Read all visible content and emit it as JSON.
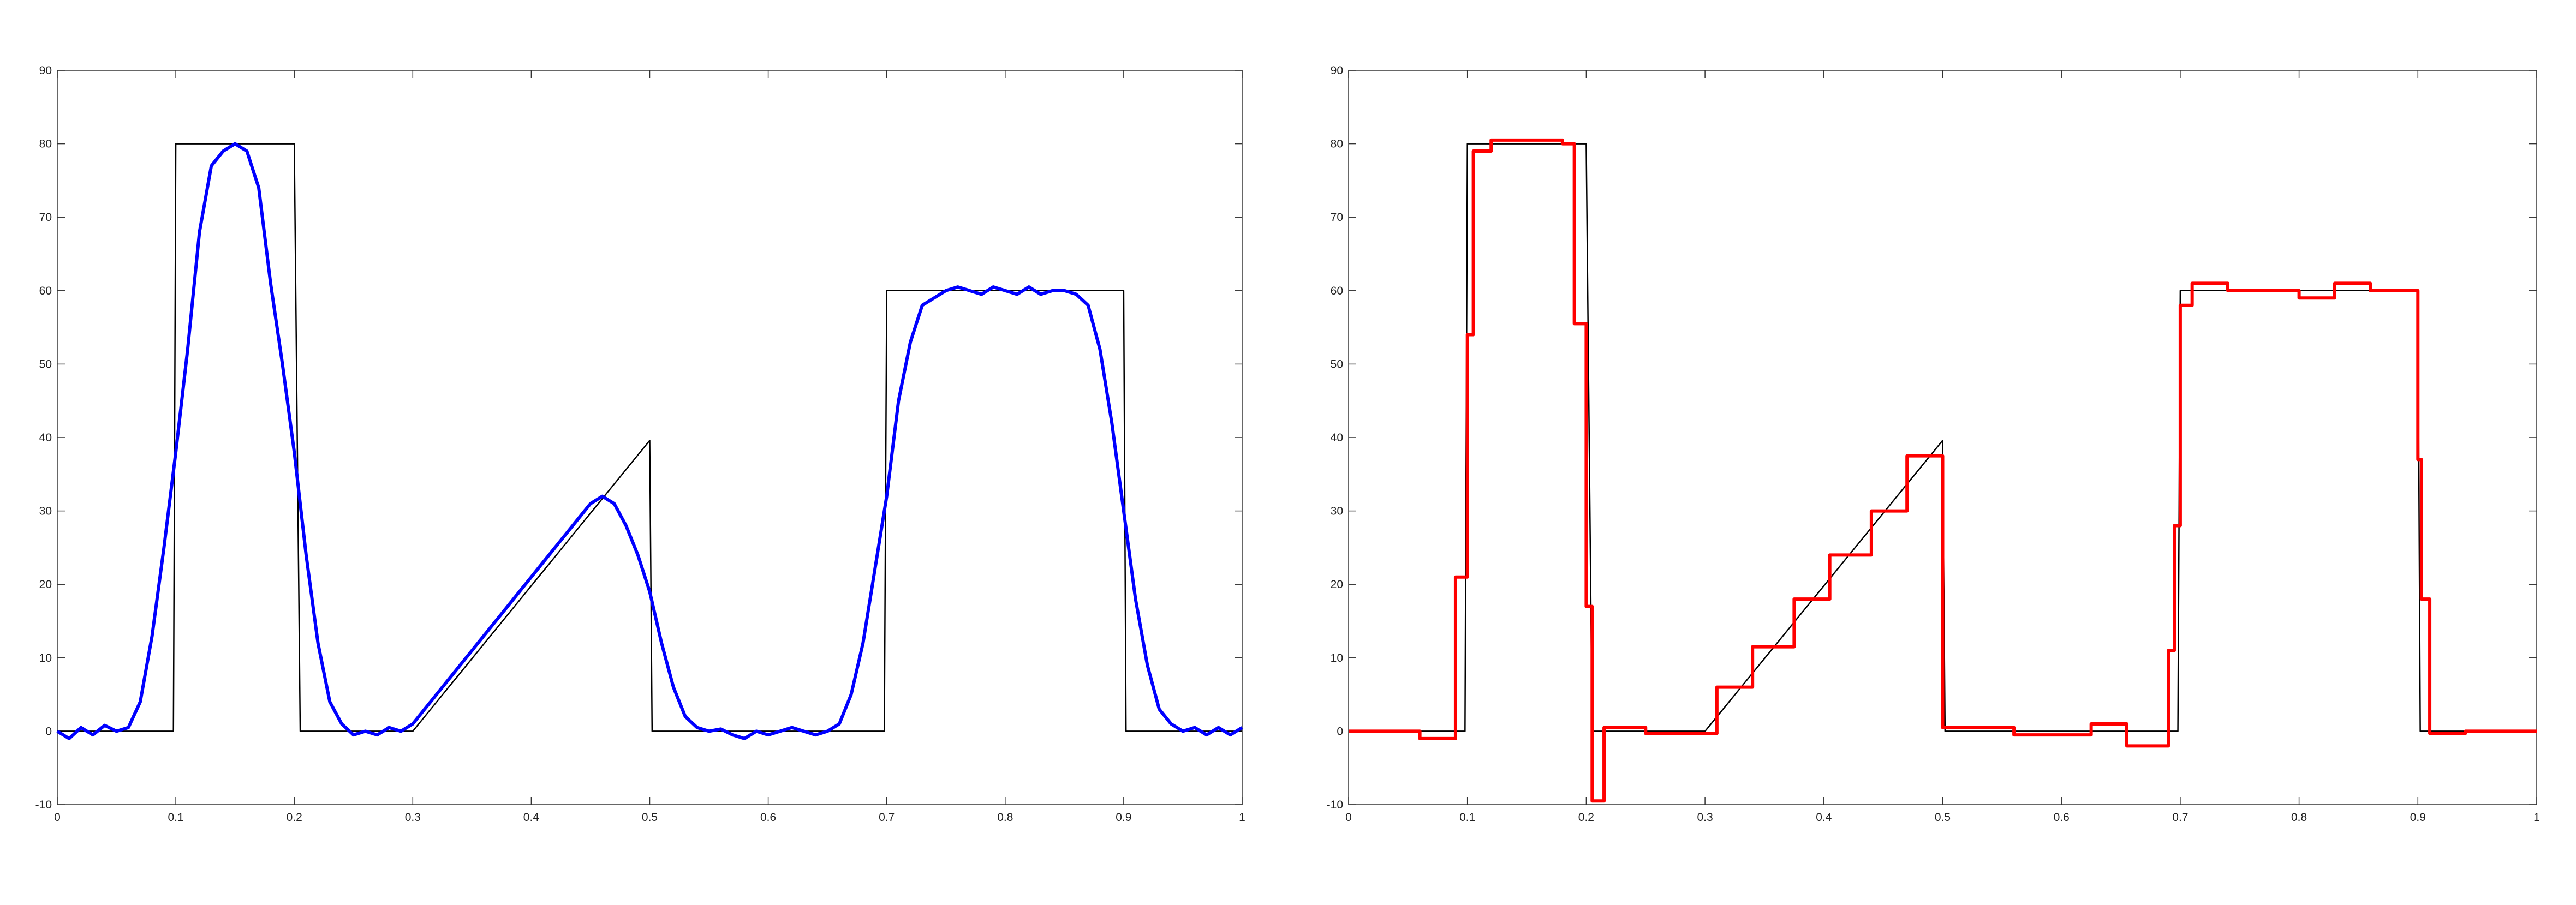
{
  "chart_data": [
    {
      "type": "line",
      "xlim": [
        0,
        1
      ],
      "ylim": [
        -10,
        90
      ],
      "xticks": [
        0,
        0.1,
        0.2,
        0.3,
        0.4,
        0.5,
        0.6,
        0.7,
        0.8,
        0.9,
        1
      ],
      "yticks": [
        -10,
        0,
        10,
        20,
        30,
        40,
        50,
        60,
        70,
        80,
        90
      ],
      "series": [
        {
          "color": "#000000",
          "x": [
            0,
            0.098,
            0.1,
            0.2,
            0.205,
            0.3,
            0.5,
            0.502,
            0.698,
            0.7,
            0.9,
            0.902,
            1
          ],
          "values": [
            0,
            0,
            80,
            80,
            0,
            0,
            39.6,
            0,
            0,
            60,
            60,
            0,
            0
          ]
        },
        {
          "color": "#0000ff",
          "x": [
            0,
            0.01,
            0.02,
            0.03,
            0.04,
            0.05,
            0.06,
            0.07,
            0.08,
            0.09,
            0.1,
            0.11,
            0.12,
            0.13,
            0.14,
            0.15,
            0.16,
            0.17,
            0.18,
            0.19,
            0.2,
            0.21,
            0.22,
            0.23,
            0.24,
            0.25,
            0.26,
            0.27,
            0.28,
            0.29,
            0.3,
            0.31,
            0.32,
            0.33,
            0.34,
            0.35,
            0.36,
            0.37,
            0.38,
            0.39,
            0.4,
            0.41,
            0.42,
            0.43,
            0.44,
            0.45,
            0.46,
            0.47,
            0.48,
            0.49,
            0.5,
            0.51,
            0.52,
            0.53,
            0.54,
            0.55,
            0.56,
            0.57,
            0.58,
            0.59,
            0.6,
            0.61,
            0.62,
            0.63,
            0.64,
            0.65,
            0.66,
            0.67,
            0.68,
            0.69,
            0.7,
            0.71,
            0.72,
            0.73,
            0.74,
            0.75,
            0.76,
            0.77,
            0.78,
            0.79,
            0.8,
            0.81,
            0.82,
            0.83,
            0.84,
            0.85,
            0.86,
            0.87,
            0.88,
            0.89,
            0.9,
            0.91,
            0.92,
            0.93,
            0.94,
            0.95,
            0.96,
            0.97,
            0.98,
            0.99,
            1
          ],
          "values": [
            0,
            -1,
            0.5,
            -0.5,
            0.8,
            0,
            0.5,
            4,
            13,
            25,
            38,
            52,
            68,
            77,
            79,
            80,
            79,
            74,
            61,
            50,
            38,
            24,
            12,
            4,
            1,
            -0.5,
            0,
            -0.5,
            0.5,
            0,
            1,
            3,
            5,
            7,
            9,
            11,
            13,
            15,
            17,
            19,
            21,
            23,
            25,
            27,
            29,
            31,
            32,
            31,
            28,
            24,
            19,
            12,
            6,
            2,
            0.5,
            0,
            0.3,
            -0.5,
            -1,
            0,
            -0.5,
            0,
            0.5,
            0,
            -0.5,
            0,
            1,
            5,
            12,
            22,
            32,
            45,
            53,
            58,
            59,
            60,
            60.5,
            60,
            59.5,
            60.5,
            60,
            59.5,
            60.5,
            59.5,
            60,
            60,
            59.5,
            58,
            52,
            42,
            30,
            18,
            9,
            3,
            1,
            0,
            0.5,
            -0.5,
            0.5,
            -0.5,
            0.5
          ]
        }
      ]
    },
    {
      "type": "line",
      "xlim": [
        0,
        1
      ],
      "ylim": [
        -10,
        90
      ],
      "xticks": [
        0,
        0.1,
        0.2,
        0.3,
        0.4,
        0.5,
        0.6,
        0.7,
        0.8,
        0.9,
        1
      ],
      "yticks": [
        -10,
        0,
        10,
        20,
        30,
        40,
        50,
        60,
        70,
        80,
        90
      ],
      "series": [
        {
          "color": "#000000",
          "x": [
            0,
            0.098,
            0.1,
            0.2,
            0.205,
            0.3,
            0.5,
            0.502,
            0.698,
            0.7,
            0.9,
            0.902,
            1
          ],
          "values": [
            0,
            0,
            80,
            80,
            0,
            0,
            39.6,
            0,
            0,
            60,
            60,
            0,
            0
          ]
        },
        {
          "color": "#ff0000",
          "x": [
            0,
            0.06,
            0.06,
            0.09,
            0.09,
            0.1,
            0.1,
            0.105,
            0.105,
            0.12,
            0.12,
            0.18,
            0.18,
            0.19,
            0.19,
            0.2,
            0.2,
            0.205,
            0.205,
            0.215,
            0.215,
            0.25,
            0.25,
            0.31,
            0.31,
            0.34,
            0.34,
            0.375,
            0.375,
            0.405,
            0.405,
            0.44,
            0.44,
            0.47,
            0.47,
            0.5,
            0.5,
            0.56,
            0.56,
            0.625,
            0.625,
            0.655,
            0.655,
            0.69,
            0.69,
            0.695,
            0.695,
            0.7,
            0.7,
            0.71,
            0.71,
            0.74,
            0.74,
            0.8,
            0.8,
            0.83,
            0.83,
            0.86,
            0.86,
            0.9,
            0.9,
            0.903,
            0.903,
            0.91,
            0.91,
            0.94,
            0.94,
            1
          ],
          "values": [
            0,
            0,
            -1,
            -1,
            21,
            21,
            54,
            54,
            79,
            79,
            80.5,
            80.5,
            80,
            80,
            55.5,
            55.5,
            17,
            17,
            -9.5,
            -9.5,
            0.5,
            0.5,
            -0.3,
            -0.3,
            6,
            6,
            11.5,
            11.5,
            18,
            18,
            24,
            24,
            30,
            30,
            37.5,
            37.5,
            0.5,
            0.5,
            -0.5,
            -0.5,
            1,
            1,
            -2,
            -2,
            11,
            11,
            28,
            28,
            58,
            58,
            61,
            61,
            60,
            60,
            59,
            59,
            61,
            61,
            60,
            60,
            37,
            37,
            18,
            18,
            -0.3,
            -0.3,
            0,
            0
          ]
        }
      ]
    }
  ]
}
